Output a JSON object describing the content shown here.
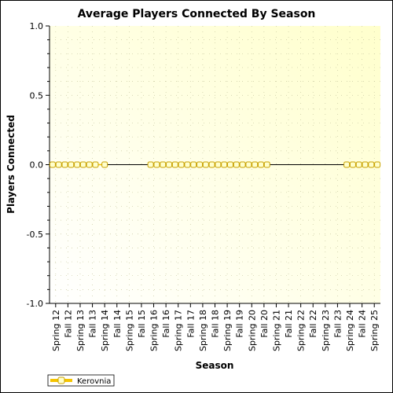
{
  "chart_data": {
    "type": "line",
    "title": "Average Players Connected By Season",
    "xlabel": "Season",
    "ylabel": "Players Connected",
    "ylim": [
      -1.0,
      1.0
    ],
    "yticks": [
      "1.0",
      "0.5",
      "0.0",
      "-0.5",
      "-1.0"
    ],
    "categories": [
      "Spring 12",
      "Fall 12",
      "Spring 13",
      "Fall 13",
      "Spring 14",
      "Fall 14",
      "Spring 15",
      "Fall 15",
      "Spring 16",
      "Fall 16",
      "Spring 17",
      "Fall 17",
      "Spring 18",
      "Fall 18",
      "Spring 19",
      "Fall 19",
      "Spring 20",
      "Fall 20",
      "Spring 21",
      "Fall 21",
      "Spring 22",
      "Fall 22",
      "Spring 23",
      "Fall 23",
      "Spring 24",
      "Fall 24",
      "Spring 25"
    ],
    "grid": true,
    "legend_position": "bottom-left",
    "background_colors": [
      "#ffffcc",
      "#ffffff"
    ],
    "series": [
      {
        "name": "Kerovnia",
        "color": "#f5c400",
        "marker_fill": "#ffffcc",
        "marker_stroke": "#c8a000",
        "points": [
          {
            "x": "Spring 12",
            "y": 0
          },
          {
            "x": "Spring 12",
            "y": 0
          },
          {
            "x": "Fall 12",
            "y": 0
          },
          {
            "x": "Fall 12",
            "y": 0
          },
          {
            "x": "Spring 13",
            "y": 0
          },
          {
            "x": "Spring 13",
            "y": 0
          },
          {
            "x": "Fall 13",
            "y": 0
          },
          {
            "x": "Fall 13",
            "y": 0
          },
          {
            "x": "Spring 14",
            "y": 0
          },
          {
            "x": "Spring 16",
            "y": 0
          },
          {
            "x": "Spring 16",
            "y": 0
          },
          {
            "x": "Fall 16",
            "y": 0
          },
          {
            "x": "Fall 16",
            "y": 0
          },
          {
            "x": "Spring 17",
            "y": 0
          },
          {
            "x": "Spring 17",
            "y": 0
          },
          {
            "x": "Fall 17",
            "y": 0
          },
          {
            "x": "Fall 17",
            "y": 0
          },
          {
            "x": "Spring 18",
            "y": 0
          },
          {
            "x": "Spring 18",
            "y": 0
          },
          {
            "x": "Fall 18",
            "y": 0
          },
          {
            "x": "Fall 18",
            "y": 0
          },
          {
            "x": "Spring 19",
            "y": 0
          },
          {
            "x": "Spring 19",
            "y": 0
          },
          {
            "x": "Fall 19",
            "y": 0
          },
          {
            "x": "Fall 19",
            "y": 0
          },
          {
            "x": "Spring 20",
            "y": 0
          },
          {
            "x": "Spring 20",
            "y": 0
          },
          {
            "x": "Fall 20",
            "y": 0
          },
          {
            "x": "Fall 20",
            "y": 0
          },
          {
            "x": "Spring 24",
            "y": 0
          },
          {
            "x": "Spring 24",
            "y": 0
          },
          {
            "x": "Fall 24",
            "y": 0
          },
          {
            "x": "Fall 24",
            "y": 0
          },
          {
            "x": "Spring 25",
            "y": 0
          },
          {
            "x": "Spring 25",
            "y": 0
          }
        ]
      }
    ]
  }
}
